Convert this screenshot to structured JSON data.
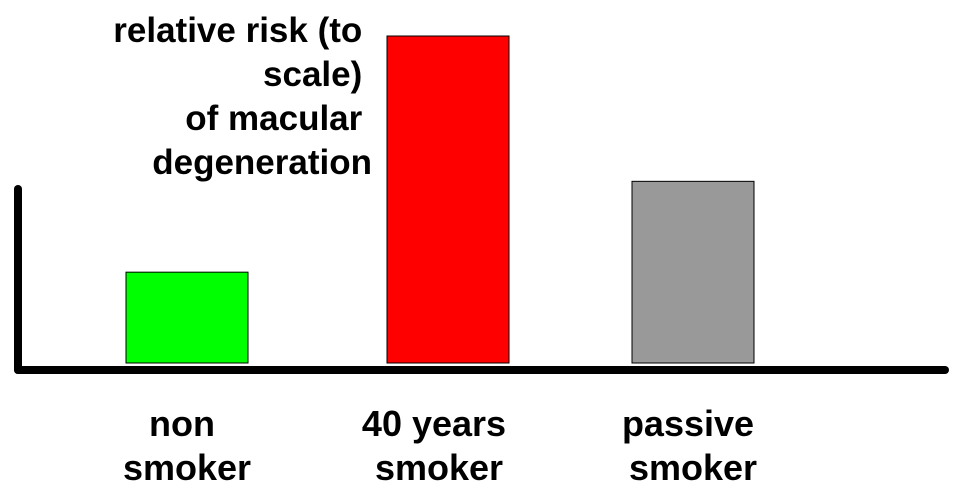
{
  "chart_data": {
    "type": "bar",
    "ylabel_lines": [
      "relative risk (to",
      "scale)",
      "of macular",
      "degeneration"
    ],
    "categories": [
      [
        "non",
        "smoker"
      ],
      [
        "40 years",
        "smoker"
      ],
      [
        "passive",
        "smoker"
      ]
    ],
    "values": [
      1,
      3.6,
      2
    ],
    "colors": [
      "#00ff00",
      "#ff0000",
      "#999999"
    ],
    "ylim": [
      0,
      3.6
    ],
    "grid": false,
    "legend": "none"
  }
}
